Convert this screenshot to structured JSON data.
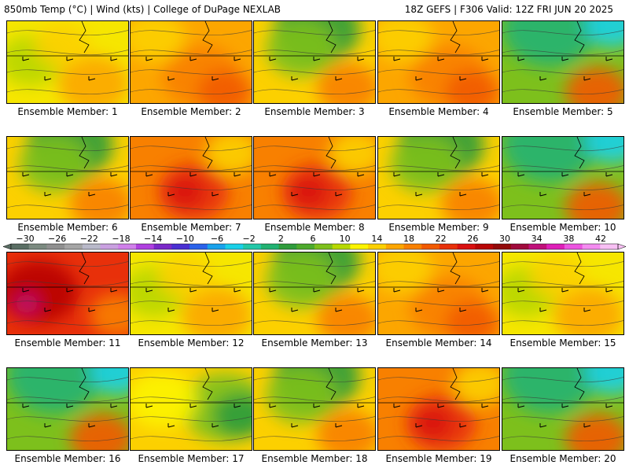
{
  "header": {
    "title": "850mb Temp (°C) | Wind (kts) | College of DuPage NEXLAB",
    "run_info": "18Z GEFS | F306 Valid: 12Z FRI JUN 20 2025"
  },
  "colorbar": {
    "labels": [
      "−30",
      "−26",
      "−22",
      "−18",
      "−14",
      "−10",
      "−6",
      "−2",
      "2",
      "6",
      "10",
      "14",
      "18",
      "22",
      "26",
      "30",
      "34",
      "38",
      "42"
    ],
    "colors": [
      "#5a6e64",
      "#7b8a80",
      "#8f8f8f",
      "#a5a5a5",
      "#b9b9c9",
      "#c9a0e0",
      "#d080ea",
      "#b040e0",
      "#7a28c8",
      "#4a2fd2",
      "#2a62ea",
      "#19a2ec",
      "#1ad0e8",
      "#22c7a8",
      "#22b272",
      "#2f9c3c",
      "#4daa2c",
      "#7dc01c",
      "#b7d800",
      "#fcf400",
      "#fcd000",
      "#fca600",
      "#f88000",
      "#f25a00",
      "#e8300a",
      "#d81010",
      "#b80606",
      "#920a0a",
      "#a00a3c",
      "#c0107a",
      "#de20b8",
      "#ec54e0",
      "#f48cf0",
      "#f8c0f4"
    ]
  },
  "panels": [
    {
      "label": "Ensemble Member: 1",
      "scheme": "yellow"
    },
    {
      "label": "Ensemble Member: 2",
      "scheme": "orange"
    },
    {
      "label": "Ensemble Member: 3",
      "scheme": "greenwarm"
    },
    {
      "label": "Ensemble Member: 4",
      "scheme": "orange"
    },
    {
      "label": "Ensemble Member: 5",
      "scheme": "cool"
    },
    {
      "label": "Ensemble Member: 6",
      "scheme": "greenwarm"
    },
    {
      "label": "Ensemble Member: 7",
      "scheme": "red"
    },
    {
      "label": "Ensemble Member: 8",
      "scheme": "red"
    },
    {
      "label": "Ensemble Member: 9",
      "scheme": "greenwarm"
    },
    {
      "label": "Ensemble Member: 10",
      "scheme": "cool"
    },
    {
      "label": "Ensemble Member: 11",
      "scheme": "hot"
    },
    {
      "label": "Ensemble Member: 12",
      "scheme": "yellow"
    },
    {
      "label": "Ensemble Member: 13",
      "scheme": "greenwarm"
    },
    {
      "label": "Ensemble Member: 14",
      "scheme": "orange"
    },
    {
      "label": "Ensemble Member: 15",
      "scheme": "yellow"
    },
    {
      "label": "Ensemble Member: 16",
      "scheme": "cool"
    },
    {
      "label": "Ensemble Member: 17",
      "scheme": "yellowgreen"
    },
    {
      "label": "Ensemble Member: 18",
      "scheme": "greenwarm"
    },
    {
      "label": "Ensemble Member: 19",
      "scheme": "red"
    },
    {
      "label": "Ensemble Member: 20",
      "scheme": "cool"
    }
  ]
}
